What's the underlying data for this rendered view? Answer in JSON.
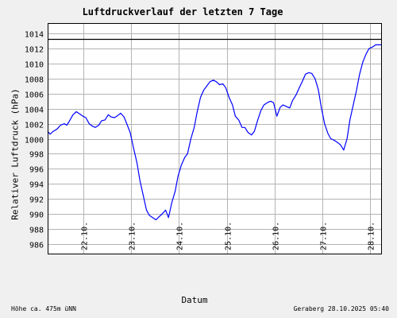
{
  "chart_data": {
    "type": "line",
    "title": "Luftdruckverlauf der letzten 7 Tage",
    "xlabel": "Datum",
    "ylabel": "Relativer Luftdruck (hPa)",
    "ylim": [
      984.6,
      1015.4
    ],
    "yticks": [
      986,
      988,
      990,
      992,
      994,
      996,
      998,
      1000,
      1002,
      1004,
      1006,
      1008,
      1010,
      1012,
      1014
    ],
    "xlim": [
      21.25,
      28.25
    ],
    "xtick_positions": [
      22,
      23,
      24,
      25,
      26,
      27,
      28
    ],
    "xtick_labels": [
      "22.10.",
      "23.10.",
      "24.10.",
      "25.10.",
      "26.10.",
      "27.10.",
      "28.10."
    ],
    "reference_line": 1013.25,
    "grid": true,
    "line_color": "#0000ff",
    "series": [
      {
        "x": [
          21.25,
          21.3,
          21.37,
          21.45,
          21.52,
          21.6,
          21.65,
          21.7,
          21.78,
          21.85,
          21.92,
          21.99,
          22.05,
          22.12,
          22.18,
          22.25,
          22.32,
          22.38,
          22.45,
          22.52,
          22.58,
          22.65,
          22.72,
          22.78,
          22.85,
          22.92,
          22.98,
          23.05,
          23.12,
          23.18,
          23.25,
          23.32,
          23.38,
          23.45,
          23.52,
          23.58,
          23.65,
          23.72,
          23.78,
          23.85,
          23.92,
          23.98,
          24.05,
          24.12,
          24.18,
          24.25,
          24.32,
          24.38,
          24.45,
          24.52,
          24.58,
          24.65,
          24.72,
          24.78,
          24.85,
          24.92,
          24.98,
          25.05,
          25.12,
          25.18,
          25.25,
          25.32,
          25.38,
          25.45,
          25.52,
          25.58,
          25.65,
          25.72,
          25.78,
          25.85,
          25.92,
          25.98,
          26.05,
          26.12,
          26.18,
          26.25,
          26.32,
          26.38,
          26.45,
          26.52,
          26.58,
          26.65,
          26.72,
          26.78,
          26.85,
          26.92,
          26.98,
          27.05,
          27.12,
          27.18,
          27.25,
          27.32,
          27.38,
          27.45,
          27.52,
          27.58,
          27.65,
          27.72,
          27.78,
          27.85,
          27.92,
          27.98,
          28.05,
          28.12,
          28.18,
          28.25
        ],
        "y": [
          1001.0,
          1000.6,
          1001.0,
          1001.3,
          1001.8,
          1002.0,
          1001.8,
          1002.3,
          1003.2,
          1003.6,
          1003.3,
          1003.0,
          1002.8,
          1002.0,
          1001.7,
          1001.5,
          1001.8,
          1002.4,
          1002.5,
          1003.2,
          1002.9,
          1002.8,
          1003.1,
          1003.4,
          1002.9,
          1001.8,
          1000.8,
          998.7,
          996.8,
          994.5,
          992.5,
          990.5,
          989.8,
          989.5,
          989.2,
          989.6,
          990.0,
          990.5,
          989.5,
          991.5,
          993.0,
          995.0,
          996.5,
          997.5,
          998.0,
          1000.0,
          1001.5,
          1003.5,
          1005.5,
          1006.5,
          1007.0,
          1007.6,
          1007.8,
          1007.6,
          1007.2,
          1007.3,
          1006.8,
          1005.5,
          1004.5,
          1003.0,
          1002.5,
          1001.5,
          1001.5,
          1000.8,
          1000.5,
          1001.0,
          1002.5,
          1003.8,
          1004.5,
          1004.8,
          1005.0,
          1004.8,
          1003.0,
          1004.2,
          1004.5,
          1004.3,
          1004.1,
          1005.1,
          1005.8,
          1006.8,
          1007.6,
          1008.6,
          1008.8,
          1008.7,
          1008.0,
          1006.5,
          1004.2,
          1002.0,
          1000.7,
          1000.0,
          999.8,
          999.5,
          999.2,
          998.5,
          1000.0,
          1002.5,
          1004.5,
          1006.5,
          1008.5,
          1010.2,
          1011.3,
          1012.0,
          1012.2,
          1012.5,
          1012.5,
          1012.5
        ]
      }
    ]
  },
  "footer": {
    "left": "Höhe ca. 475m üNN",
    "right": "Geraberg 28.10.2025 05:40"
  }
}
